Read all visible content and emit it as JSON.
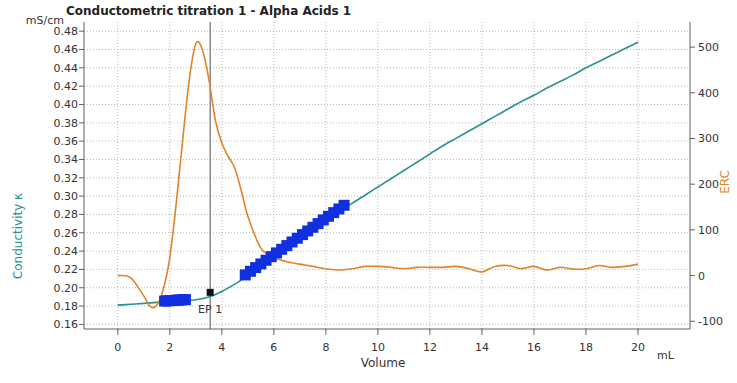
{
  "chart_data": {
    "type": "line",
    "title": "Conductometric titration 1 - Alpha Acids 1",
    "xlabel": "Volume",
    "x_unit": "mL",
    "ylabel": "Conductivity κ",
    "y_unit": "mS/cm",
    "y2label": "ERC",
    "xlim": [
      -1.3,
      22
    ],
    "xticks": [
      0,
      2,
      4,
      6,
      8,
      10,
      12,
      14,
      16,
      18,
      20
    ],
    "ylim": [
      0.155,
      0.49
    ],
    "yticks": [
      0.16,
      0.18,
      {
        "value": 0.2,
        "label": "0.20"
      },
      0.22,
      0.24,
      0.26,
      0.28,
      {
        "value": 0.3,
        "label": "0.30"
      },
      0.32,
      0.34,
      0.36,
      0.38,
      {
        "value": 0.4,
        "label": "0.40"
      },
      0.42,
      0.44,
      0.46,
      0.48
    ],
    "y2lim": [
      -117,
      555
    ],
    "y2ticks": [
      -100,
      0,
      100,
      200,
      300,
      400,
      500
    ],
    "grid": true,
    "series": [
      {
        "color": "#2a9191",
        "line_style": "solid",
        "x": [
          0,
          0.5,
          1,
          1.5,
          2,
          2.5,
          3,
          3.5,
          4,
          4.5,
          5,
          5.5,
          6,
          6.5,
          7,
          7.5,
          8,
          8.5,
          9,
          9.5,
          10,
          10.5,
          11,
          11.5,
          12,
          12.5,
          13,
          13.5,
          14,
          14.5,
          15,
          15.5,
          16,
          16.5,
          17,
          17.5,
          18,
          18.5,
          19,
          19.5,
          20
        ],
        "values": [
          0.181,
          0.182,
          0.183,
          0.184,
          0.185,
          0.186,
          0.187,
          0.19,
          0.196,
          0.204,
          0.213,
          0.222,
          0.232,
          0.242,
          0.252,
          0.262,
          0.272,
          0.282,
          0.292,
          0.301,
          0.31,
          0.319,
          0.328,
          0.337,
          0.346,
          0.355,
          0.363,
          0.371,
          0.379,
          0.387,
          0.395,
          0.403,
          0.41,
          0.418,
          0.425,
          0.432,
          0.44,
          0.447,
          0.454,
          0.461,
          0.468
        ]
      },
      {
        "color": "#e0842a",
        "line_style": "solid",
        "axis": "y2",
        "x": [
          0,
          0.5,
          1,
          1.25,
          1.5,
          1.75,
          2,
          2.25,
          2.5,
          2.75,
          3,
          3.25,
          3.5,
          3.75,
          4,
          4.25,
          4.5,
          4.75,
          5,
          5.5,
          6,
          6.5,
          7,
          7.5,
          8,
          8.5,
          9,
          9.5,
          10,
          10.5,
          11,
          11.5,
          12,
          12.5,
          13,
          13.5,
          14,
          14.5,
          15,
          15.5,
          16,
          16.5,
          17,
          17.5,
          18,
          18.5,
          19,
          19.5,
          20
        ],
        "values": [
          0,
          -5,
          -45,
          -68,
          -65,
          -30,
          40,
          160,
          300,
          430,
          508,
          495,
          430,
          340,
          290,
          260,
          235,
          185,
          130,
          60,
          40,
          30,
          25,
          20,
          15,
          12,
          15,
          20,
          20,
          18,
          15,
          18,
          18,
          18,
          20,
          15,
          8,
          20,
          22,
          15,
          20,
          12,
          18,
          14,
          15,
          22,
          18,
          20,
          25
        ]
      },
      {
        "color": "#1030e0",
        "marker": "square",
        "line_style": "none",
        "x": [
          1.8,
          1.9,
          2.0,
          2.1,
          2.2,
          2.3,
          2.4,
          2.5,
          2.6
        ],
        "values": [
          0.1855,
          0.1857,
          0.1859,
          0.1861,
          0.1863,
          0.1865,
          0.1867,
          0.1869,
          0.1871
        ]
      },
      {
        "color": "#1030e0",
        "marker": "square",
        "line_style": "none",
        "x": [
          4.9,
          5.1,
          5.3,
          5.5,
          5.7,
          5.9,
          6.1,
          6.3,
          6.5,
          6.7,
          6.9,
          7.1,
          7.3,
          7.5,
          7.7,
          7.9,
          8.1,
          8.3,
          8.5,
          8.7
        ],
        "values": [
          0.214,
          0.218,
          0.222,
          0.226,
          0.23,
          0.234,
          0.238,
          0.242,
          0.246,
          0.25,
          0.254,
          0.258,
          0.262,
          0.266,
          0.27,
          0.274,
          0.278,
          0.282,
          0.286,
          0.29
        ]
      }
    ],
    "annotations": [
      {
        "text": "EP 1",
        "x": 3.55,
        "y": 0.195
      }
    ]
  }
}
